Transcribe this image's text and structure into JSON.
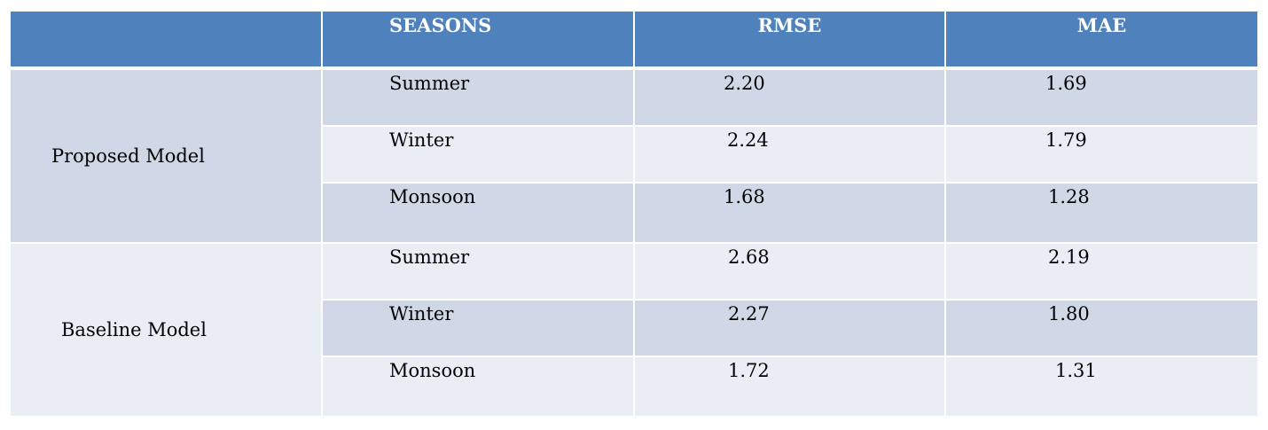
{
  "header": {
    "corner": "",
    "seasons": "SEASONS",
    "rmse": "RMSE",
    "mae": "MAE"
  },
  "groups": [
    {
      "label": "Proposed Model",
      "rows": [
        {
          "season": "Summer",
          "rmse": "2.20",
          "mae": "1.69"
        },
        {
          "season": "Winter",
          "rmse": "2.24",
          "mae": "1.79"
        },
        {
          "season": "Monsoon",
          "rmse": "1.68",
          "mae": "1.28"
        }
      ]
    },
    {
      "label": "Baseline Model",
      "rows": [
        {
          "season": "Summer",
          "rmse": "2.68",
          "mae": "2.19"
        },
        {
          "season": "Winter",
          "rmse": "2.27",
          "mae": "1.80"
        },
        {
          "season": "Monsoon",
          "rmse": "1.72",
          "mae": "1.31"
        }
      ]
    }
  ],
  "colors": {
    "header_bg": "#4f81bd",
    "row_dark": "#d0d8e8",
    "row_light": "#e9edf4"
  }
}
